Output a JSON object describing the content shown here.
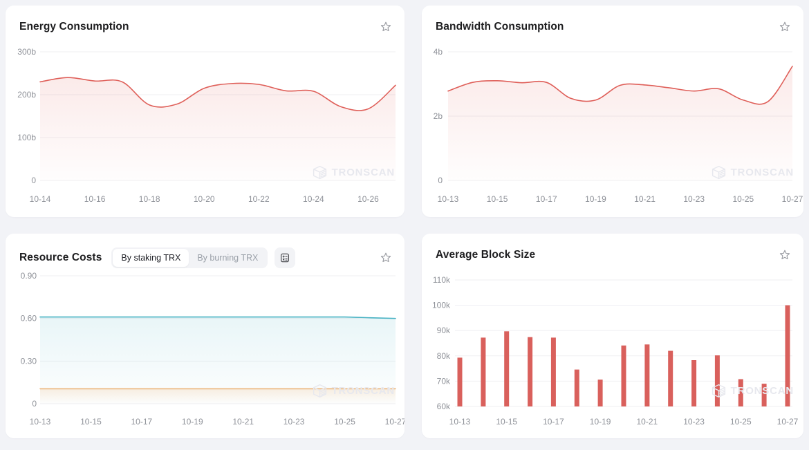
{
  "page": {
    "background": "#f2f3f7"
  },
  "watermark": {
    "label": "TRONSCAN"
  },
  "cards": {
    "energy": {
      "title": "Energy Consumption"
    },
    "bandwidth": {
      "title": "Bandwidth Consumption"
    },
    "resource": {
      "title": "Resource Costs",
      "toggle": {
        "options": [
          "By staking TRX",
          "By burning TRX"
        ],
        "active_index": 0
      }
    },
    "blocksize": {
      "title": "Average Block Size"
    }
  },
  "chart_data": [
    {
      "id": "energy-consumption",
      "type": "area",
      "title": "Energy Consumption",
      "xlabel": "",
      "ylabel": "",
      "x": [
        "10-14",
        "10-15",
        "10-16",
        "10-17",
        "10-18",
        "10-19",
        "10-20",
        "10-21",
        "10-22",
        "10-23",
        "10-24",
        "10-25",
        "10-26",
        "10-27"
      ],
      "x_tick_every": 2,
      "ylim": [
        0,
        300
      ],
      "y_ticks": [
        {
          "value": 0,
          "label": "0"
        },
        {
          "value": 100,
          "label": "100b"
        },
        {
          "value": 200,
          "label": "200b"
        },
        {
          "value": 300,
          "label": "300b"
        }
      ],
      "grid": true,
      "legend": "none",
      "series": [
        {
          "color": "#df5f59",
          "fill_opacity": 0.13,
          "values": [
            230,
            240,
            232,
            230,
            176,
            178,
            215,
            226,
            224,
            209,
            208,
            172,
            167,
            222
          ]
        }
      ]
    },
    {
      "id": "bandwidth-consumption",
      "type": "area",
      "title": "Bandwidth Consumption",
      "xlabel": "",
      "ylabel": "",
      "x": [
        "10-13",
        "10-14",
        "10-15",
        "10-16",
        "10-17",
        "10-18",
        "10-19",
        "10-20",
        "10-21",
        "10-22",
        "10-23",
        "10-24",
        "10-25",
        "10-26",
        "10-27"
      ],
      "x_tick_every": 2,
      "ylim": [
        0,
        4
      ],
      "y_ticks": [
        {
          "value": 0,
          "label": "0"
        },
        {
          "value": 2,
          "label": "2b"
        },
        {
          "value": 4,
          "label": "4b"
        }
      ],
      "grid": true,
      "legend": "none",
      "series": [
        {
          "color": "#df5f59",
          "fill_opacity": 0.13,
          "values": [
            2.78,
            3.05,
            3.1,
            3.04,
            3.05,
            2.55,
            2.5,
            2.96,
            2.97,
            2.88,
            2.78,
            2.85,
            2.5,
            2.45,
            3.55
          ]
        }
      ]
    },
    {
      "id": "resource-costs",
      "type": "area",
      "title": "Resource Costs",
      "xlabel": "",
      "ylabel": "",
      "x": [
        "10-13",
        "10-14",
        "10-15",
        "10-16",
        "10-17",
        "10-18",
        "10-19",
        "10-20",
        "10-21",
        "10-22",
        "10-23",
        "10-24",
        "10-25",
        "10-26",
        "10-27"
      ],
      "x_tick_every": 2,
      "ylim": [
        0,
        0.9
      ],
      "y_ticks": [
        {
          "value": 0,
          "label": "0"
        },
        {
          "value": 0.3,
          "label": "0.30"
        },
        {
          "value": 0.6,
          "label": "0.60"
        },
        {
          "value": 0.9,
          "label": "0.90"
        }
      ],
      "grid": true,
      "legend": "none",
      "series": [
        {
          "color": "#48b2c3",
          "fill_opacity": 0.12,
          "values": [
            0.61,
            0.61,
            0.61,
            0.61,
            0.61,
            0.61,
            0.61,
            0.61,
            0.61,
            0.61,
            0.61,
            0.61,
            0.61,
            0.605,
            0.6
          ]
        },
        {
          "color": "#ecb77d",
          "fill_opacity": 0.22,
          "values": [
            0.105,
            0.105,
            0.105,
            0.105,
            0.105,
            0.105,
            0.105,
            0.105,
            0.105,
            0.105,
            0.105,
            0.105,
            0.105,
            0.105,
            0.105
          ]
        }
      ]
    },
    {
      "id": "average-block-size",
      "type": "bar",
      "title": "Average Block Size",
      "xlabel": "",
      "ylabel": "",
      "x": [
        "10-13",
        "10-14",
        "10-15",
        "10-16",
        "10-17",
        "10-18",
        "10-19",
        "10-20",
        "10-21",
        "10-22",
        "10-23",
        "10-24",
        "10-25",
        "10-26",
        "10-27"
      ],
      "x_tick_every": 2,
      "ylim": [
        60,
        110
      ],
      "y_ticks": [
        {
          "value": 60,
          "label": "60k"
        },
        {
          "value": 70,
          "label": "70k"
        },
        {
          "value": 80,
          "label": "80k"
        },
        {
          "value": 90,
          "label": "90k"
        },
        {
          "value": 100,
          "label": "100k"
        },
        {
          "value": 110,
          "label": "110k"
        }
      ],
      "grid": true,
      "legend": "none",
      "series": [
        {
          "color": "#d9605c",
          "fill_opacity": 1,
          "values": [
            79.3,
            87.2,
            89.7,
            87.4,
            87.2,
            74.6,
            70.6,
            84.1,
            84.5,
            82.0,
            78.3,
            80.2,
            70.8,
            69.0,
            100.0
          ]
        }
      ]
    }
  ]
}
